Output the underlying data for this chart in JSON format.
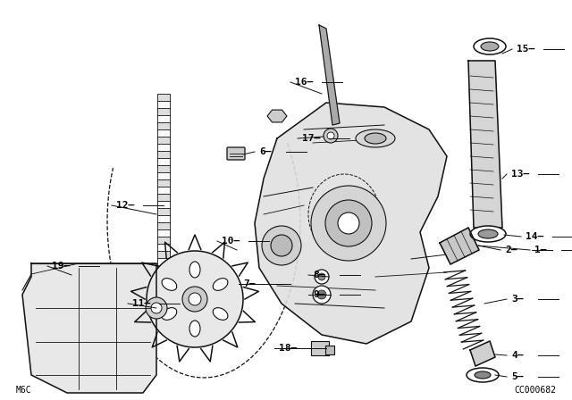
{
  "bg_color": "#ffffff",
  "lc": "#111111",
  "footer_left": "M6C",
  "footer_right": "CC000682",
  "label_fs": 8,
  "small_fs": 7
}
